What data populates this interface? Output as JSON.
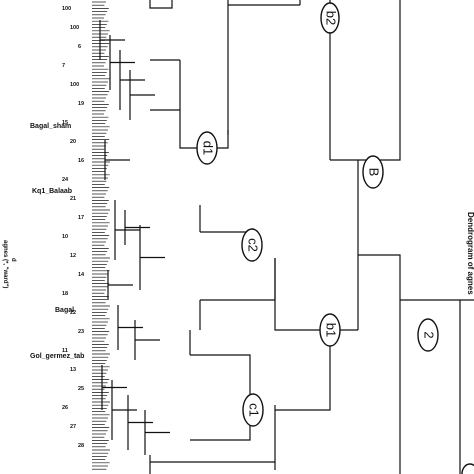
{
  "title": "Dendrogram of agnes",
  "side_label_symbol": "d",
  "side_label_method": "agnes (*, \"ward\")",
  "cluster_labels": {
    "root": "2",
    "B": "B",
    "b1": "b1",
    "b2": "b2",
    "c1": "c1",
    "c2": "c2",
    "d1": "d1"
  },
  "named_leaves": [
    "Bagal_sham",
    "Kq1_Balaab",
    "Bagal",
    "Gol_germez_tab"
  ],
  "leaf_fragments": [
    "100",
    "100",
    "6",
    "7",
    "100",
    "19",
    "15",
    "20",
    "16",
    "24",
    "21",
    "17",
    "10",
    "12",
    "14",
    "18",
    "22",
    "23",
    "11",
    "13",
    "25",
    "26",
    "27",
    "28"
  ],
  "colors": {
    "ink": "#111111",
    "background": "#ffffff"
  }
}
